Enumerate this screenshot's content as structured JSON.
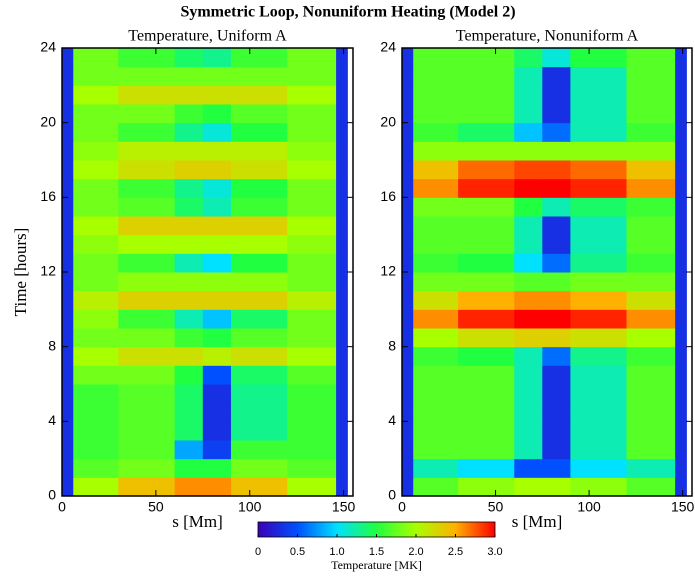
{
  "chart_data": {
    "type": "heatmap",
    "title": "Symmetric Loop, Nonuniform Heating (Model 2)",
    "y_label": "Time [hours]",
    "x_label": "s [Mm]",
    "xlim": [
      0,
      155
    ],
    "xticks": [
      0,
      50,
      100,
      150
    ],
    "ylim": [
      0,
      24
    ],
    "yticks": [
      0,
      4,
      8,
      12,
      16,
      20,
      24
    ],
    "s_edges": [
      0,
      6,
      30,
      60,
      75,
      90,
      120,
      146,
      152
    ],
    "t_edges": [
      0,
      1,
      2,
      3,
      4,
      5,
      6,
      7,
      8,
      9,
      10,
      11,
      12,
      13,
      14,
      15,
      16,
      17,
      18,
      19,
      20,
      21,
      22,
      23,
      24
    ],
    "colorbar": {
      "label": "Temperature [MK]",
      "clim": [
        0,
        3
      ],
      "colors": [
        "#3a00b8",
        "#0050ff",
        "#00e0ff",
        "#20ff40",
        "#a8ff00",
        "#ffb000",
        "#ff0000"
      ],
      "ticks": [
        0,
        0.5,
        {
          "value": 1,
          "label": "1.0"
        },
        1.5,
        {
          "value": 2,
          "label": "2.0"
        },
        2.5,
        {
          "value": 3,
          "label": "3.0"
        }
      ]
    },
    "panels": [
      {
        "title": "Temperature, Uniform A",
        "values": [
          [
            0.3,
            2.0,
            2.4,
            2.6,
            2.6,
            2.4,
            2.0,
            0.3
          ],
          [
            0.3,
            1.7,
            1.8,
            1.5,
            1.5,
            1.8,
            1.7,
            0.3
          ],
          [
            0.3,
            1.6,
            1.7,
            0.8,
            0.4,
            1.6,
            1.6,
            0.3
          ],
          [
            0.3,
            1.6,
            1.7,
            1.4,
            0.3,
            1.3,
            1.6,
            0.3
          ],
          [
            0.3,
            1.6,
            1.7,
            1.4,
            0.3,
            1.3,
            1.6,
            0.3
          ],
          [
            0.3,
            1.6,
            1.7,
            1.4,
            0.3,
            1.3,
            1.6,
            0.3
          ],
          [
            0.3,
            1.8,
            1.8,
            1.5,
            0.5,
            1.4,
            1.7,
            0.3
          ],
          [
            0.3,
            2.0,
            2.2,
            2.2,
            2.1,
            2.2,
            2.0,
            0.3
          ],
          [
            0.3,
            1.8,
            1.8,
            1.6,
            1.5,
            1.7,
            1.8,
            0.3
          ],
          [
            0.3,
            1.9,
            1.6,
            1.2,
            0.9,
            1.4,
            1.8,
            0.3
          ],
          [
            0.3,
            2.1,
            2.3,
            2.3,
            2.3,
            2.3,
            2.1,
            0.3
          ],
          [
            0.3,
            1.8,
            1.9,
            1.9,
            1.9,
            1.9,
            1.8,
            0.3
          ],
          [
            0.3,
            1.8,
            1.6,
            1.2,
            1.0,
            1.5,
            1.8,
            0.3
          ],
          [
            0.3,
            1.9,
            2.0,
            2.0,
            2.0,
            2.0,
            1.9,
            0.3
          ],
          [
            0.3,
            2.0,
            2.3,
            2.3,
            2.3,
            2.3,
            2.0,
            0.3
          ],
          [
            0.3,
            1.8,
            1.7,
            1.4,
            1.2,
            1.6,
            1.8,
            0.3
          ],
          [
            0.3,
            1.8,
            1.6,
            1.3,
            1.1,
            1.5,
            1.8,
            0.3
          ],
          [
            0.3,
            2.0,
            2.2,
            2.3,
            2.3,
            2.2,
            2.0,
            0.3
          ],
          [
            0.3,
            1.9,
            2.1,
            2.1,
            2.1,
            2.1,
            1.9,
            0.3
          ],
          [
            0.3,
            1.8,
            1.6,
            1.3,
            1.1,
            1.5,
            1.8,
            0.3
          ],
          [
            0.3,
            1.8,
            1.8,
            1.6,
            1.5,
            1.7,
            1.8,
            0.3
          ],
          [
            0.3,
            2.0,
            2.2,
            2.2,
            2.2,
            2.2,
            2.0,
            0.3
          ],
          [
            0.3,
            1.8,
            1.8,
            1.8,
            1.8,
            1.8,
            1.8,
            0.3
          ],
          [
            0.3,
            1.8,
            1.6,
            1.4,
            1.3,
            1.6,
            1.8,
            0.3
          ]
        ]
      },
      {
        "title": "Temperature, Nonuniform A",
        "values": [
          [
            0.3,
            1.7,
            1.9,
            2.0,
            2.0,
            1.9,
            1.7,
            0.3
          ],
          [
            0.3,
            1.2,
            1.0,
            0.5,
            0.5,
            1.0,
            1.2,
            0.3
          ],
          [
            0.3,
            1.7,
            1.7,
            1.2,
            0.3,
            1.2,
            1.7,
            0.3
          ],
          [
            0.3,
            1.7,
            1.7,
            1.2,
            0.3,
            1.2,
            1.7,
            0.3
          ],
          [
            0.3,
            1.7,
            1.7,
            1.2,
            0.3,
            1.2,
            1.7,
            0.3
          ],
          [
            0.3,
            1.7,
            1.7,
            1.2,
            0.3,
            1.2,
            1.7,
            0.3
          ],
          [
            0.3,
            1.7,
            1.7,
            1.2,
            0.3,
            1.2,
            1.7,
            0.3
          ],
          [
            0.3,
            1.6,
            1.5,
            1.2,
            0.6,
            1.3,
            1.6,
            0.3
          ],
          [
            0.3,
            2.0,
            2.2,
            2.3,
            2.3,
            2.2,
            2.0,
            0.3
          ],
          [
            0.3,
            2.6,
            2.9,
            3.0,
            3.0,
            2.9,
            2.6,
            0.3
          ],
          [
            0.3,
            2.2,
            2.5,
            2.6,
            2.6,
            2.5,
            2.2,
            0.3
          ],
          [
            0.3,
            1.8,
            1.8,
            1.7,
            1.7,
            1.8,
            1.8,
            0.3
          ],
          [
            0.3,
            1.6,
            1.5,
            1.0,
            0.6,
            1.3,
            1.6,
            0.3
          ],
          [
            0.3,
            1.7,
            1.7,
            1.2,
            0.3,
            1.2,
            1.7,
            0.3
          ],
          [
            0.3,
            1.7,
            1.7,
            1.2,
            0.3,
            1.2,
            1.7,
            0.3
          ],
          [
            0.3,
            1.8,
            1.8,
            1.5,
            1.2,
            1.4,
            1.6,
            0.3
          ],
          [
            0.3,
            2.6,
            2.9,
            3.0,
            3.0,
            2.9,
            2.6,
            0.3
          ],
          [
            0.3,
            2.4,
            2.7,
            2.8,
            2.8,
            2.7,
            2.4,
            0.3
          ],
          [
            0.3,
            1.9,
            1.9,
            1.9,
            1.9,
            1.9,
            1.9,
            0.3
          ],
          [
            0.3,
            1.6,
            1.4,
            0.9,
            0.6,
            1.2,
            1.6,
            0.3
          ],
          [
            0.3,
            1.7,
            1.7,
            1.2,
            0.3,
            1.2,
            1.7,
            0.3
          ],
          [
            0.3,
            1.7,
            1.7,
            1.2,
            0.3,
            1.2,
            1.7,
            0.3
          ],
          [
            0.3,
            1.7,
            1.7,
            1.2,
            0.3,
            1.2,
            1.7,
            0.3
          ],
          [
            0.3,
            1.7,
            1.7,
            1.4,
            1.1,
            1.5,
            1.7,
            0.3
          ]
        ]
      }
    ]
  }
}
